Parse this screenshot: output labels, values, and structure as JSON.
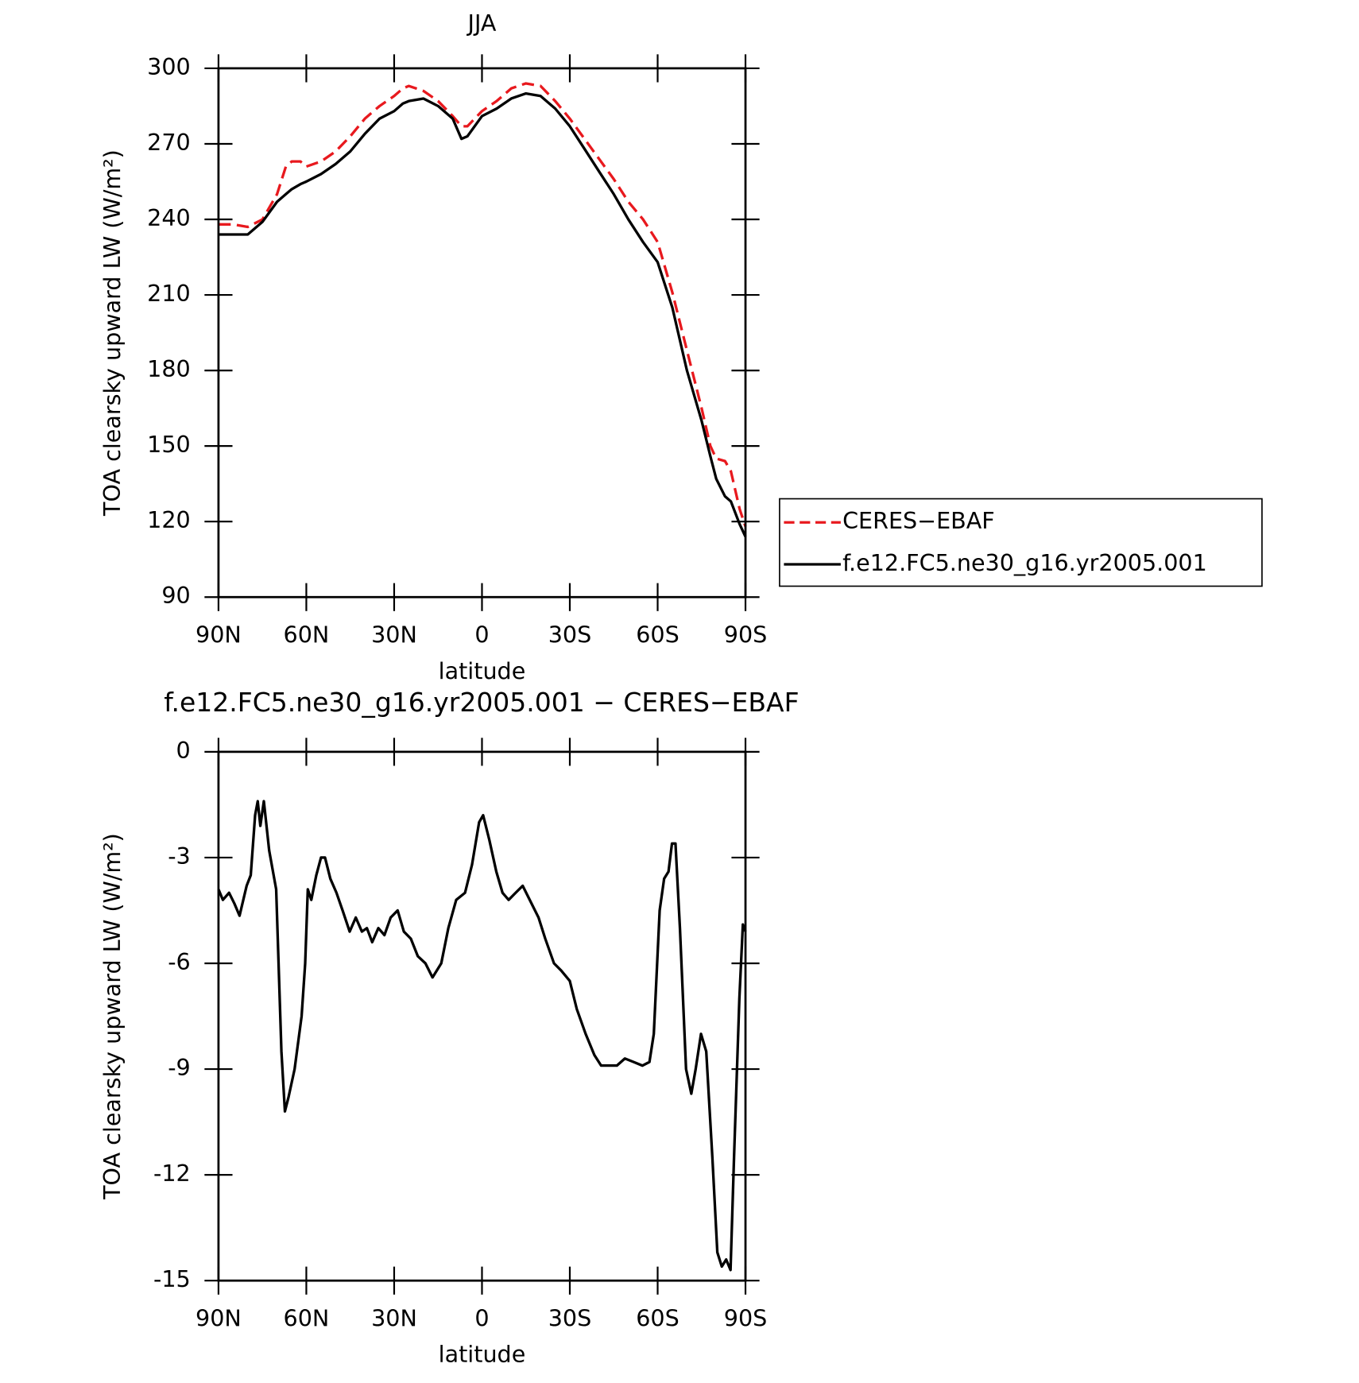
{
  "chart_data": [
    {
      "type": "line",
      "title": "JJA",
      "xlabel": "latitude",
      "ylabel": "TOA clearsky upward LW (W/m²)",
      "x": [
        90,
        85,
        80,
        75,
        70,
        67,
        65,
        62,
        60,
        55,
        50,
        45,
        40,
        35,
        30,
        27,
        25,
        20,
        15,
        10,
        7,
        5,
        0,
        -5,
        -10,
        -15,
        -20,
        -25,
        -30,
        -35,
        -40,
        -45,
        -50,
        -55,
        -60,
        -65,
        -70,
        -75,
        -78,
        -80,
        -83,
        -85,
        -88,
        -90
      ],
      "series": [
        {
          "name": "CERES−EBAF",
          "color": "#e8191e",
          "style": "dashed",
          "values": [
            238,
            238,
            237,
            240,
            250,
            261,
            263,
            263,
            261,
            263,
            267,
            273,
            280,
            285,
            289,
            292,
            293,
            291,
            287,
            281,
            277,
            277,
            283,
            287,
            292,
            294,
            293,
            287,
            280,
            272,
            264,
            256,
            247,
            240,
            231,
            211,
            188,
            165,
            150,
            145,
            144,
            140,
            125,
            118
          ]
        },
        {
          "name": "f.e12.FC5.ne30_g16.yr2005.001",
          "color": "#000000",
          "style": "solid",
          "values": [
            234,
            234,
            234,
            239,
            247,
            250,
            252,
            254,
            255,
            258,
            262,
            267,
            274,
            280,
            283,
            286,
            287,
            288,
            285,
            280,
            272,
            273,
            281,
            284,
            288,
            290,
            289,
            284,
            277,
            268,
            259,
            250,
            240,
            231,
            223,
            205,
            180,
            160,
            146,
            137,
            130,
            128,
            119,
            114
          ]
        }
      ],
      "xlim": [
        90,
        -90
      ],
      "xticks": [
        {
          "value": 90,
          "label": "90N"
        },
        {
          "value": 60,
          "label": "60N"
        },
        {
          "value": 30,
          "label": "30N"
        },
        0,
        {
          "value": -30,
          "label": "30S"
        },
        {
          "value": -60,
          "label": "60S"
        },
        {
          "value": -90,
          "label": "90S"
        }
      ],
      "ylim": [
        90,
        300
      ],
      "yticks": [
        90,
        120,
        150,
        180,
        210,
        240,
        270,
        300
      ],
      "legend": "right"
    },
    {
      "type": "line",
      "title": "f.e12.FC5.ne30_g16.yr2005.001 − CERES−EBAF",
      "xlabel": "latitude",
      "ylabel": "TOA clearsky upward LW (W/m²)",
      "x": [
        90,
        88.5,
        86.4,
        84.6,
        82.8,
        80.4,
        79,
        77.5,
        76.6,
        75.7,
        74.5,
        72.7,
        70.3,
        68.5,
        67.3,
        66.1,
        64,
        61.6,
        60.4,
        59.5,
        58.3,
        56.6,
        55,
        53.6,
        51.8,
        49.7,
        47.6,
        45.2,
        43.1,
        41,
        39.3,
        37.5,
        35.4,
        33.3,
        31.2,
        28.8,
        26.7,
        24.3,
        21.9,
        19.3,
        16.9,
        13.9,
        11.5,
        8.8,
        5.8,
        3.4,
        1,
        -0.4,
        -2.5,
        -4.9,
        -7,
        -9.1,
        -11.5,
        -13.9,
        -16.3,
        -19.3,
        -21.6,
        -24.6,
        -27,
        -30,
        -32.4,
        -35.4,
        -38.4,
        -40.7,
        -43.4,
        -46.1,
        -48.8,
        -51.8,
        -54.8,
        -57.2,
        -58.7,
        -60.7,
        -62.2,
        -63.7,
        -64.9,
        -66.1,
        -67.6,
        -69.7,
        -71.5,
        -73,
        -74.8,
        -76.6,
        -78.7,
        -80.4,
        -81.9,
        -83.4,
        -84.9,
        -86.1,
        -87.9,
        -89.1,
        -90
      ],
      "values": [
        -3.9,
        -4.2,
        -4.0,
        -4.3,
        -4.65,
        -3.8,
        -3.5,
        -1.8,
        -1.4,
        -2.1,
        -1.4,
        -2.8,
        -3.9,
        -8.5,
        -10.2,
        -9.8,
        -9.0,
        -7.5,
        -6.0,
        -3.9,
        -4.2,
        -3.5,
        -3.0,
        -3.0,
        -3.6,
        -4.0,
        -4.5,
        -5.1,
        -4.7,
        -5.1,
        -5.0,
        -5.4,
        -5.0,
        -5.2,
        -4.7,
        -4.5,
        -5.1,
        -5.3,
        -5.8,
        -6.0,
        -6.4,
        -6.0,
        -5.0,
        -4.2,
        -4.0,
        -3.2,
        -2.0,
        -1.8,
        -2.5,
        -3.4,
        -4.0,
        -4.2,
        -4.0,
        -3.8,
        -4.2,
        -4.7,
        -5.3,
        -6.0,
        -6.2,
        -6.5,
        -7.3,
        -8.0,
        -8.6,
        -8.9,
        -8.9,
        -8.9,
        -8.7,
        -8.8,
        -8.9,
        -8.8,
        -8.0,
        -4.5,
        -3.6,
        -3.4,
        -2.6,
        -2.6,
        -5.0,
        -9.0,
        -9.7,
        -9.0,
        -8.0,
        -8.5,
        -11.5,
        -14.2,
        -14.6,
        -14.4,
        -14.7,
        -11.5,
        -7.0,
        -4.9,
        -5.1
      ],
      "color": "#000000",
      "xlim": [
        90,
        -90
      ],
      "xticks": [
        {
          "value": 90,
          "label": "90N"
        },
        {
          "value": 60,
          "label": "60N"
        },
        {
          "value": 30,
          "label": "30N"
        },
        0,
        {
          "value": -30,
          "label": "30S"
        },
        {
          "value": -60,
          "label": "60S"
        },
        {
          "value": -90,
          "label": "90S"
        }
      ],
      "ylim": [
        -15,
        0
      ],
      "yticks": [
        -15,
        -12,
        -9,
        -6,
        -3,
        0
      ]
    }
  ]
}
